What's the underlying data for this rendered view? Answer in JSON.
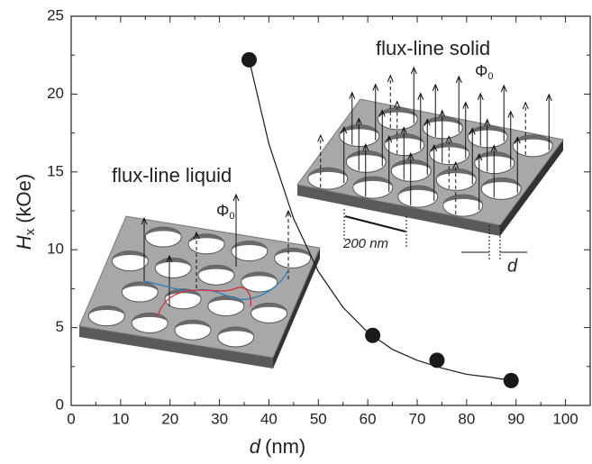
{
  "chart_data": {
    "type": "scatter",
    "x": [
      36,
      61,
      74,
      89
    ],
    "values": [
      22.2,
      4.5,
      2.9,
      1.6
    ],
    "color": "#1a1a1a",
    "fit": {
      "type": "line",
      "color": "#1a1a1a",
      "x": [
        36,
        40,
        45,
        50,
        55,
        60,
        65,
        70,
        75,
        80,
        85,
        89
      ],
      "values": [
        22.2,
        16.8,
        12.0,
        8.6,
        6.3,
        4.7,
        3.6,
        2.9,
        2.4,
        2.0,
        1.8,
        1.6
      ]
    },
    "xlim": [
      0,
      105
    ],
    "ylim": [
      0,
      25
    ],
    "xticks": [
      0,
      10,
      20,
      30,
      40,
      50,
      60,
      70,
      80,
      90,
      100
    ],
    "yticks": [
      0,
      5,
      10,
      15,
      20,
      25
    ],
    "xlabel": {
      "symbol": "d",
      "unit": "(nm)"
    },
    "ylabel": {
      "symbol": "H",
      "subscript": "x",
      "unit": "(kOe)"
    },
    "annotations": {
      "solid": "flux-line solid",
      "liquid": "flux-line liquid",
      "flux_quantum": {
        "symbol": "Φ",
        "subscript": "0"
      },
      "spacing": "200 nm",
      "wall": "d"
    }
  }
}
